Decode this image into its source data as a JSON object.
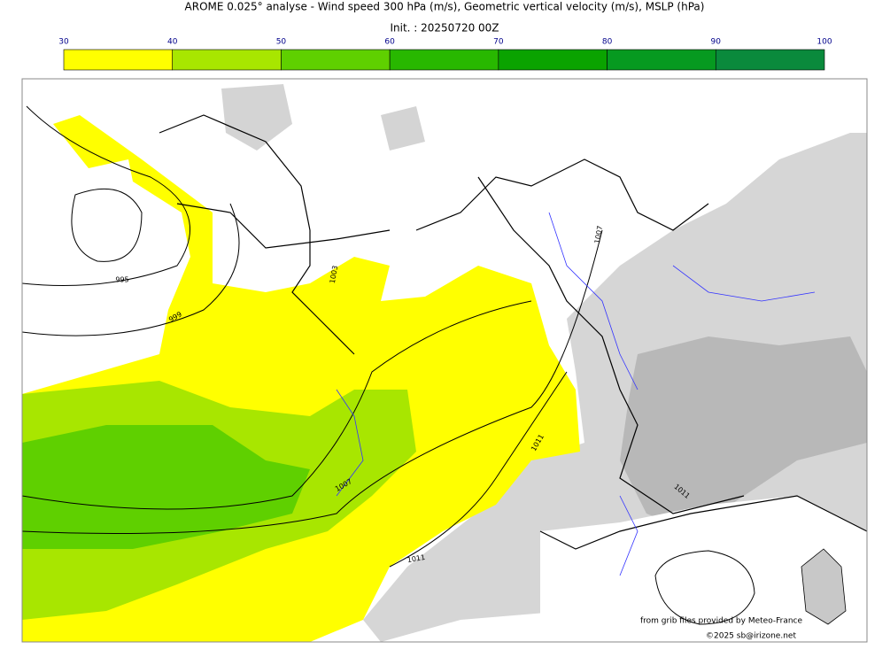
{
  "header": {
    "title": "AROME 0.025° analyse - Wind speed 300 hPa (m/s), Geometric vertical velocity (m/s), MSLP (hPa)",
    "init": "Init. : 20250720 00Z"
  },
  "colorbar": {
    "ticks": [
      30,
      40,
      50,
      60,
      70,
      80,
      90,
      100
    ],
    "colors": [
      "#ffff00",
      "#a8e600",
      "#5fd000",
      "#28b800",
      "#0aa300",
      "#069a20",
      "#0a8a3c",
      "#0a7850"
    ]
  },
  "map": {
    "contour_labels": [
      "995",
      "999",
      "1003",
      "1007",
      "1011",
      "1007",
      "1011",
      "1011"
    ]
  },
  "footer": {
    "source": "from grib files provided by Meteo-France",
    "copyright": "©2025 sb@irizone.net"
  }
}
